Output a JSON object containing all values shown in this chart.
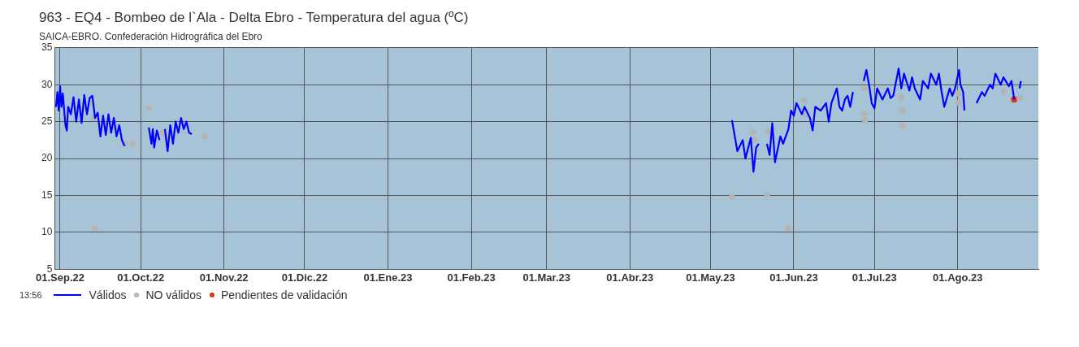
{
  "chart_data": {
    "type": "line",
    "title": "963 - EQ4 - Bombeo de l`Ala - Delta Ebro - Temperatura del agua (ºC)",
    "subtitle": "SAICA-EBRO. Confederación Hidrográfica del Ebro",
    "annotations": [
      "13:56"
    ],
    "xlim": [
      "2022-08-30",
      "2023-08-31"
    ],
    "xticks": [
      {
        "value": "2022-09-01",
        "label": "01.Sep.22"
      },
      {
        "value": "2022-10-01",
        "label": "01.Oct.22"
      },
      {
        "value": "2022-11-01",
        "label": "01.Nov.22"
      },
      {
        "value": "2022-12-01",
        "label": "01.Dic.22"
      },
      {
        "value": "2023-01-01",
        "label": "01.Ene.23"
      },
      {
        "value": "2023-02-01",
        "label": "01.Feb.23"
      },
      {
        "value": "2023-03-01",
        "label": "01.Mar.23"
      },
      {
        "value": "2023-04-01",
        "label": "01.Abr.23"
      },
      {
        "value": "2023-05-01",
        "label": "01.May.23"
      },
      {
        "value": "2023-06-01",
        "label": "01.Jun.23"
      },
      {
        "value": "2023-07-01",
        "label": "01.Jul.23"
      },
      {
        "value": "2023-08-01",
        "label": "01.Ago.23"
      }
    ],
    "ylim": [
      5,
      35
    ],
    "yticks": [
      5,
      10,
      15,
      20,
      25,
      30,
      35
    ],
    "grid": true,
    "legend": "bottom left",
    "series": [
      {
        "name": "Válidos",
        "type": "line",
        "color": "#0000ff",
        "marker": "none",
        "line_style": "solid",
        "x": [
          "2022-08-30T12:00",
          "2022-08-31",
          "2022-08-31T12:00",
          "2022-09-01",
          "2022-09-01T12:00",
          "2022-09-02",
          "2022-09-03",
          "2022-09-03T12:00",
          "2022-09-04",
          "2022-09-05",
          "2022-09-06",
          "2022-09-07",
          "2022-09-08",
          "2022-09-09",
          "2022-09-10",
          "2022-09-11",
          "2022-09-12",
          "2022-09-13",
          "2022-09-14",
          "2022-09-15",
          "2022-09-16",
          "2022-09-17",
          "2022-09-18",
          "2022-09-19",
          "2022-09-20",
          "2022-09-21",
          "2022-09-22",
          "2022-09-23",
          "2022-09-24",
          "2022-09-25",
          "2022-10-01",
          "2022-10-04",
          "2022-10-05",
          "2022-10-05T12:00",
          "2022-10-06",
          "2022-10-07",
          "2022-10-08",
          "2022-10-09",
          "2022-10-10",
          "2022-10-11",
          "2022-10-12",
          "2022-10-13",
          "2022-10-14",
          "2022-10-15",
          "2022-10-16",
          "2022-10-17",
          "2022-10-18",
          "2022-10-19",
          "2022-10-20",
          "2023-05-01",
          "2023-05-09",
          "2023-05-11",
          "2023-05-13",
          "2023-05-14",
          "2023-05-16",
          "2023-05-17",
          "2023-05-18",
          "2023-05-19",
          "2023-05-20",
          "2023-05-22",
          "2023-05-23",
          "2023-05-24",
          "2023-05-25",
          "2023-05-27",
          "2023-05-28",
          "2023-05-30",
          "2023-05-31",
          "2023-06-01",
          "2023-06-02",
          "2023-06-04",
          "2023-06-05",
          "2023-06-07",
          "2023-06-08",
          "2023-06-09",
          "2023-06-11",
          "2023-06-13",
          "2023-06-14",
          "2023-06-15",
          "2023-06-17",
          "2023-06-18",
          "2023-06-19",
          "2023-06-20",
          "2023-06-21",
          "2023-06-22",
          "2023-06-23",
          "2023-06-25",
          "2023-06-27",
          "2023-06-28",
          "2023-06-29",
          "2023-06-30",
          "2023-07-01",
          "2023-07-02",
          "2023-07-04",
          "2023-07-06",
          "2023-07-07",
          "2023-07-08",
          "2023-07-10",
          "2023-07-11",
          "2023-07-12",
          "2023-07-14",
          "2023-07-15",
          "2023-07-16",
          "2023-07-18",
          "2023-07-19",
          "2023-07-21",
          "2023-07-22",
          "2023-07-24",
          "2023-07-25",
          "2023-07-26",
          "2023-07-27",
          "2023-07-29",
          "2023-07-30",
          "2023-07-31",
          "2023-08-01T12:00",
          "2023-08-02",
          "2023-08-03",
          "2023-08-03T12:00",
          "2023-08-05",
          "2023-08-08",
          "2023-08-10",
          "2023-08-11",
          "2023-08-13",
          "2023-08-14",
          "2023-08-15",
          "2023-08-17",
          "2023-08-18",
          "2023-08-20",
          "2023-08-21",
          "2023-08-22",
          "2023-08-23",
          "2023-08-24",
          "2023-08-24T12:00"
        ],
        "values": [
          27,
          29,
          26.5,
          29.8,
          27,
          28.8,
          24.5,
          23.8,
          27,
          26,
          28.3,
          25,
          28,
          24.8,
          28.6,
          26,
          28.2,
          28.5,
          25.5,
          26.2,
          23,
          25.8,
          23.2,
          26,
          23.5,
          25.5,
          23,
          24.5,
          22.5,
          21.7,
          null,
          24.2,
          22,
          24,
          21.5,
          23.8,
          22.5,
          null,
          24,
          21,
          24.5,
          22,
          25,
          23.5,
          25.5,
          24,
          25,
          23.5,
          23.3,
          null,
          25.2,
          21,
          22.5,
          20,
          22.8,
          18.2,
          21.5,
          22,
          null,
          22,
          20.5,
          24.8,
          19.5,
          23,
          22,
          24,
          26.5,
          25.8,
          27.5,
          26,
          27,
          25.5,
          23.8,
          27,
          26.5,
          27.5,
          25,
          27.5,
          29.5,
          27,
          26.5,
          28,
          28.5,
          27,
          29,
          null,
          30.5,
          32,
          30,
          27.5,
          26.8,
          29.5,
          28,
          29.5,
          28.2,
          28.5,
          32.2,
          29.5,
          31.5,
          29.2,
          31,
          29.5,
          28,
          30.5,
          29.5,
          31.5,
          30,
          31.5,
          29,
          27,
          29.5,
          28.5,
          29.5,
          32,
          30,
          29,
          26.5,
          null,
          27.5,
          29,
          28.5,
          30,
          29.5,
          31.5,
          30,
          31,
          29.8,
          30.5,
          28,
          null,
          29.5,
          30.5
        ]
      },
      {
        "name": "NO válidos",
        "type": "scatter",
        "color": "#b4b4b4",
        "marker": "circle",
        "x": [
          "2022-09-13",
          "2022-09-13T12:00",
          "2022-09-14",
          "2022-09-25",
          "2022-09-28",
          "2022-10-04",
          "2022-10-09",
          "2022-10-10",
          "2022-10-25",
          "2023-05-09",
          "2023-05-17",
          "2023-05-17T12:00",
          "2023-05-22",
          "2023-05-22T12:00",
          "2023-05-30",
          "2023-06-05",
          "2023-06-05T12:00",
          "2023-06-27",
          "2023-06-27T06:00",
          "2023-06-27T12:00",
          "2023-07-11",
          "2023-07-11T06:00",
          "2023-07-11T12:00",
          "2023-08-01",
          "2023-08-01T06:00",
          "2023-08-18",
          "2023-08-24"
        ],
        "values": [
          27.5,
          25.5,
          10.5,
          22,
          22,
          26.8,
          23.5,
          23.2,
          23,
          14.8,
          23.6,
          22.5,
          15,
          23.7,
          10.6,
          27.9,
          25.9,
          29.5,
          26,
          25.2,
          28.3,
          26.5,
          24.4,
          28.8,
          27.6,
          29.1,
          28.2
        ]
      },
      {
        "name": "Pendientes de validación",
        "type": "scatter",
        "color": "#dd3311",
        "marker": "circle",
        "x": [
          "2023-08-22"
        ],
        "values": [
          28
        ]
      }
    ]
  }
}
